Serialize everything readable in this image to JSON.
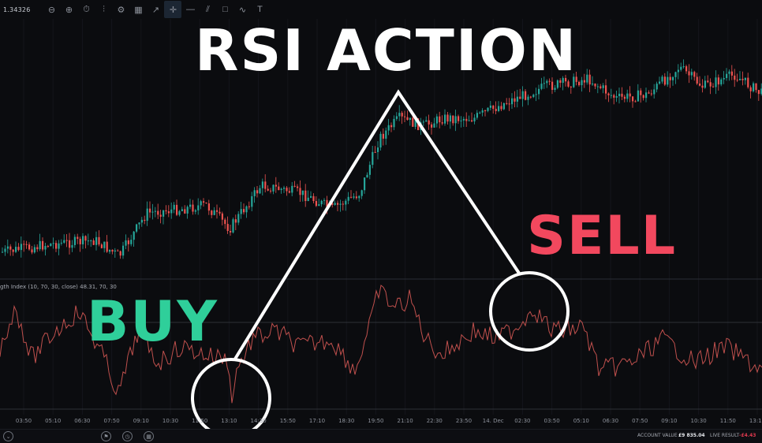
{
  "toolbar": {
    "price": "1.34326",
    "tools": [
      {
        "name": "zoom-out-icon",
        "glyph": "⊖"
      },
      {
        "name": "zoom-in-icon",
        "glyph": "⊕"
      },
      {
        "name": "timeframe-icon",
        "glyph": "⏱"
      },
      {
        "name": "indicators-icon",
        "glyph": "⫶"
      },
      {
        "name": "settings-icon",
        "glyph": "⚙"
      },
      {
        "name": "calendar-icon",
        "glyph": "▦"
      },
      {
        "name": "chart-type-icon",
        "glyph": "↗"
      },
      {
        "name": "crosshair-icon",
        "glyph": "✛"
      },
      {
        "name": "horizontal-line-icon",
        "glyph": "—"
      },
      {
        "name": "trend-line-icon",
        "glyph": "⫽"
      },
      {
        "name": "rectangle-icon",
        "glyph": "□"
      },
      {
        "name": "path-icon",
        "glyph": "∿"
      },
      {
        "name": "text-tool-icon",
        "glyph": "T"
      }
    ]
  },
  "overlay": {
    "title": "RSI ACTION",
    "buy": "BUY",
    "sell": "SELL"
  },
  "rsi_panel": {
    "label": "gth Index (10, 70, 30, close) 48.31, 70, 30"
  },
  "time_axis": [
    "03:50",
    "05:10",
    "06:30",
    "07:50",
    "09:10",
    "10:30",
    "11:50",
    "13:10",
    "14:30",
    "15:50",
    "17:10",
    "18:30",
    "19:50",
    "21:10",
    "22:30",
    "23:50",
    "14. Dec",
    "02:30",
    "03:50",
    "05:10",
    "06:30",
    "07:50",
    "09:10",
    "10:30",
    "11:50",
    "13:10"
  ],
  "status_bar": {
    "account_label": "ACCOUNT VALUE",
    "account_value": "£9 835.04",
    "result_label": "LIVE RESULT",
    "result_value": "-£4.43"
  },
  "colors": {
    "background": "#0b0c0f",
    "up_candle": "#26a69a",
    "down_candle": "#ef5350",
    "rsi_line": "#c0504d",
    "buy_text": "#2fcf9a",
    "sell_text": "#f2485e",
    "annotation": "#ffffff"
  }
}
